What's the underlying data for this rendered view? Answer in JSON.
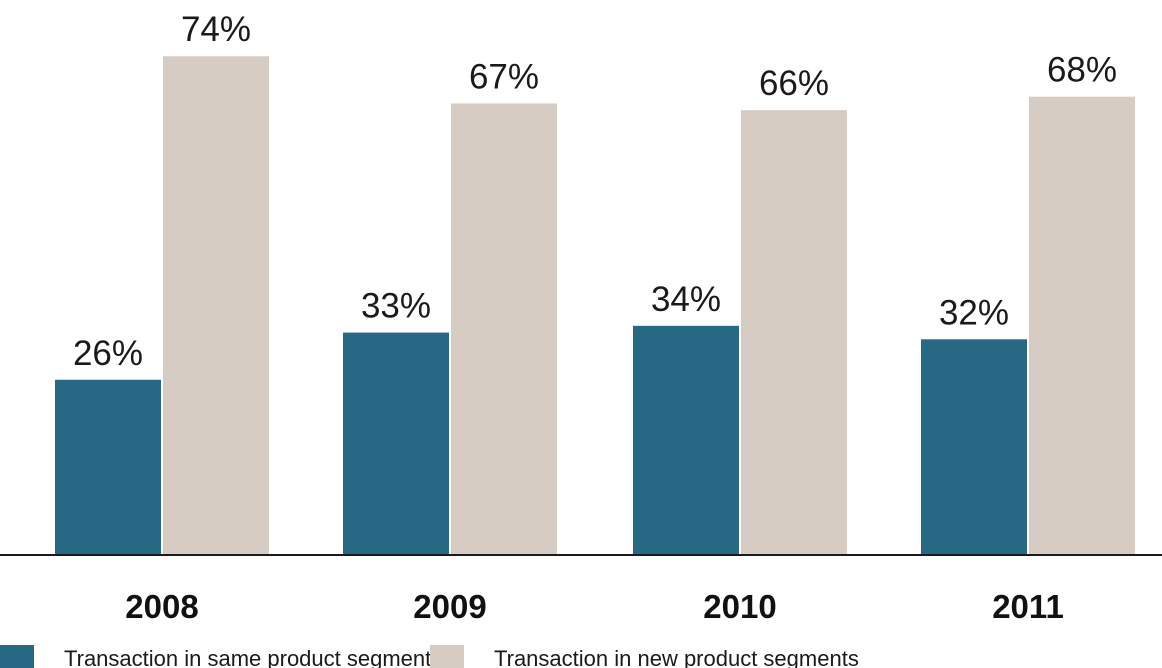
{
  "chart_data": {
    "type": "bar",
    "title": "",
    "xlabel": "",
    "ylabel": "",
    "categories": [
      "2008",
      "2009",
      "2010",
      "2011"
    ],
    "series": [
      {
        "name": "Transaction in same product segment",
        "values": [
          26,
          33,
          34,
          32
        ],
        "labels": [
          "26%",
          "33%",
          "34%",
          "32%"
        ],
        "color": "#276884"
      },
      {
        "name": "Transaction in new product segments",
        "values": [
          74,
          67,
          66,
          68
        ],
        "labels": [
          "74%",
          "67%",
          "66%",
          "68%"
        ],
        "color": "#d6ccc4"
      }
    ],
    "ylim": [
      0,
      100
    ],
    "grid": false,
    "legend_position": "bottom-left",
    "axis_color": "#1a1a1a"
  }
}
